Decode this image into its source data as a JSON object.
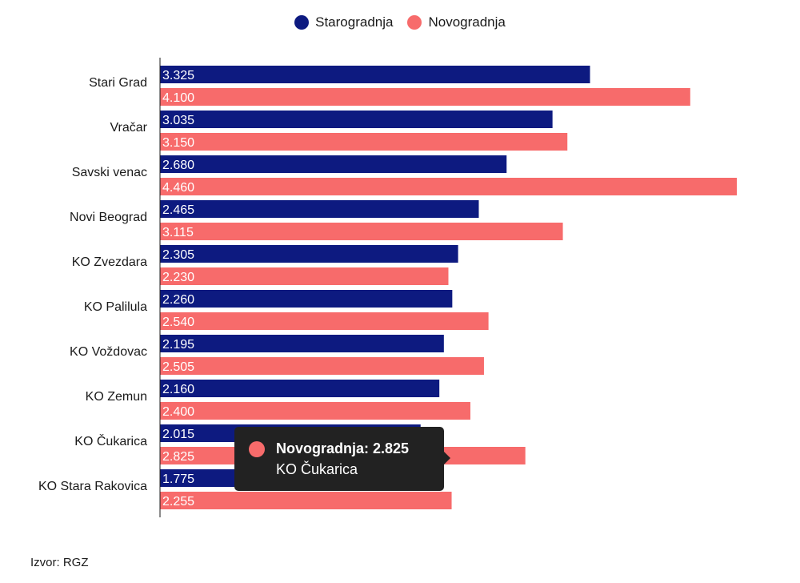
{
  "legend": {
    "items": [
      {
        "label": "Starogradnja",
        "color": "#0d1a80"
      },
      {
        "label": "Novogradnja",
        "color": "#f76b6b"
      }
    ]
  },
  "chart_data": {
    "type": "bar",
    "orientation": "horizontal",
    "categories": [
      "Stari Grad",
      "Vračar",
      "Savski venac",
      "Novi Beograd",
      "KO Zvezdara",
      "KO Palilula",
      "KO Voždovac",
      "KO Zemun",
      "KO Čukarica",
      "KO Stara Rakovica"
    ],
    "series": [
      {
        "name": "Starogradnja",
        "color": "#0d1a80",
        "values": [
          3325,
          3035,
          2680,
          2465,
          2305,
          2260,
          2195,
          2160,
          2015,
          1775
        ],
        "labels": [
          "3.325",
          "3.035",
          "2.680",
          "2.465",
          "2.305",
          "2.260",
          "2.195",
          "2.160",
          "2.015",
          "1.775"
        ]
      },
      {
        "name": "Novogradnja",
        "color": "#f76b6b",
        "values": [
          4100,
          3150,
          4460,
          3115,
          2230,
          2540,
          2505,
          2400,
          2825,
          2255
        ],
        "labels": [
          "4.100",
          "3.150",
          "4.460",
          "3.115",
          "2.230",
          "2.540",
          "2.505",
          "2.400",
          "2.825",
          "2.255"
        ]
      }
    ],
    "xlim": [
      0,
      4460
    ],
    "grid": false,
    "legend_position": "top-center"
  },
  "tooltip": {
    "series_label": "Novogradnja: 2.825",
    "category": "KO Čukarica",
    "color": "#f76b6b"
  },
  "source": "Izvor: RGZ"
}
